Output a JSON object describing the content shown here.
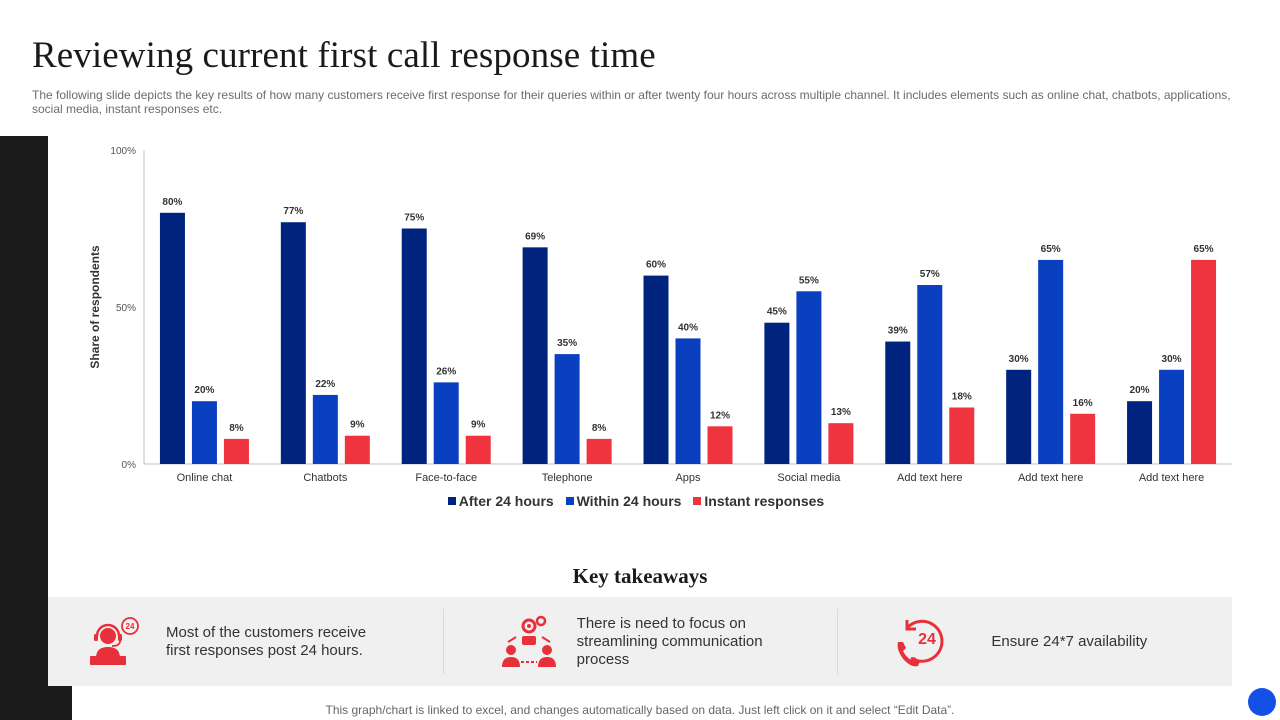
{
  "page": {
    "title": "Reviewing current first call response time",
    "subtitle": "The following slide depicts the key results of how many customers receive first response for their queries within or after twenty four hours across multiple channel. It includes elements such as online chat, chatbots, applications, social media, instant responses etc.",
    "footer": "This graph/chart is linked to excel, and changes automatically based on data. Just left click on it and select “Edit Data”."
  },
  "colors": {
    "after": "#00247e",
    "within": "#0a3fbf",
    "instant": "#f0343f",
    "accent": "#e8303a",
    "corner": "#1550e6"
  },
  "chart_data": {
    "type": "bar",
    "title": "",
    "xlabel": "",
    "ylabel": "Share of respondents",
    "ylim": [
      0,
      100
    ],
    "yticks": [
      "0%",
      "50%",
      "100%"
    ],
    "value_suffix": "%",
    "grid": false,
    "legend_position": "bottom-center",
    "categories": [
      "Online chat",
      "Chatbots",
      "Face-to-face",
      "Telephone",
      "Apps",
      "Social media",
      "Add text here",
      "Add text here",
      "Add text here"
    ],
    "series": [
      {
        "name": "After 24 hours",
        "values": [
          80,
          77,
          75,
          69,
          60,
          45,
          39,
          30,
          20
        ]
      },
      {
        "name": "Within 24 hours",
        "values": [
          20,
          22,
          26,
          35,
          40,
          55,
          57,
          65,
          30
        ]
      },
      {
        "name": "Instant responses",
        "values": [
          8,
          9,
          9,
          8,
          12,
          13,
          18,
          16,
          65
        ]
      }
    ]
  },
  "takeaways": {
    "heading": "Key takeaways",
    "items": [
      {
        "icon": "24-hour-support-agent-icon",
        "text": "Most of the customers receive first responses post 24 hours."
      },
      {
        "icon": "communication-process-icon",
        "text": "There is need to focus on streamlining communication process"
      },
      {
        "icon": "24-7-phone-icon",
        "icon_text": "24",
        "text": "Ensure 24*7 availability"
      }
    ]
  },
  "icons": {
    "agent_badge": "24"
  }
}
